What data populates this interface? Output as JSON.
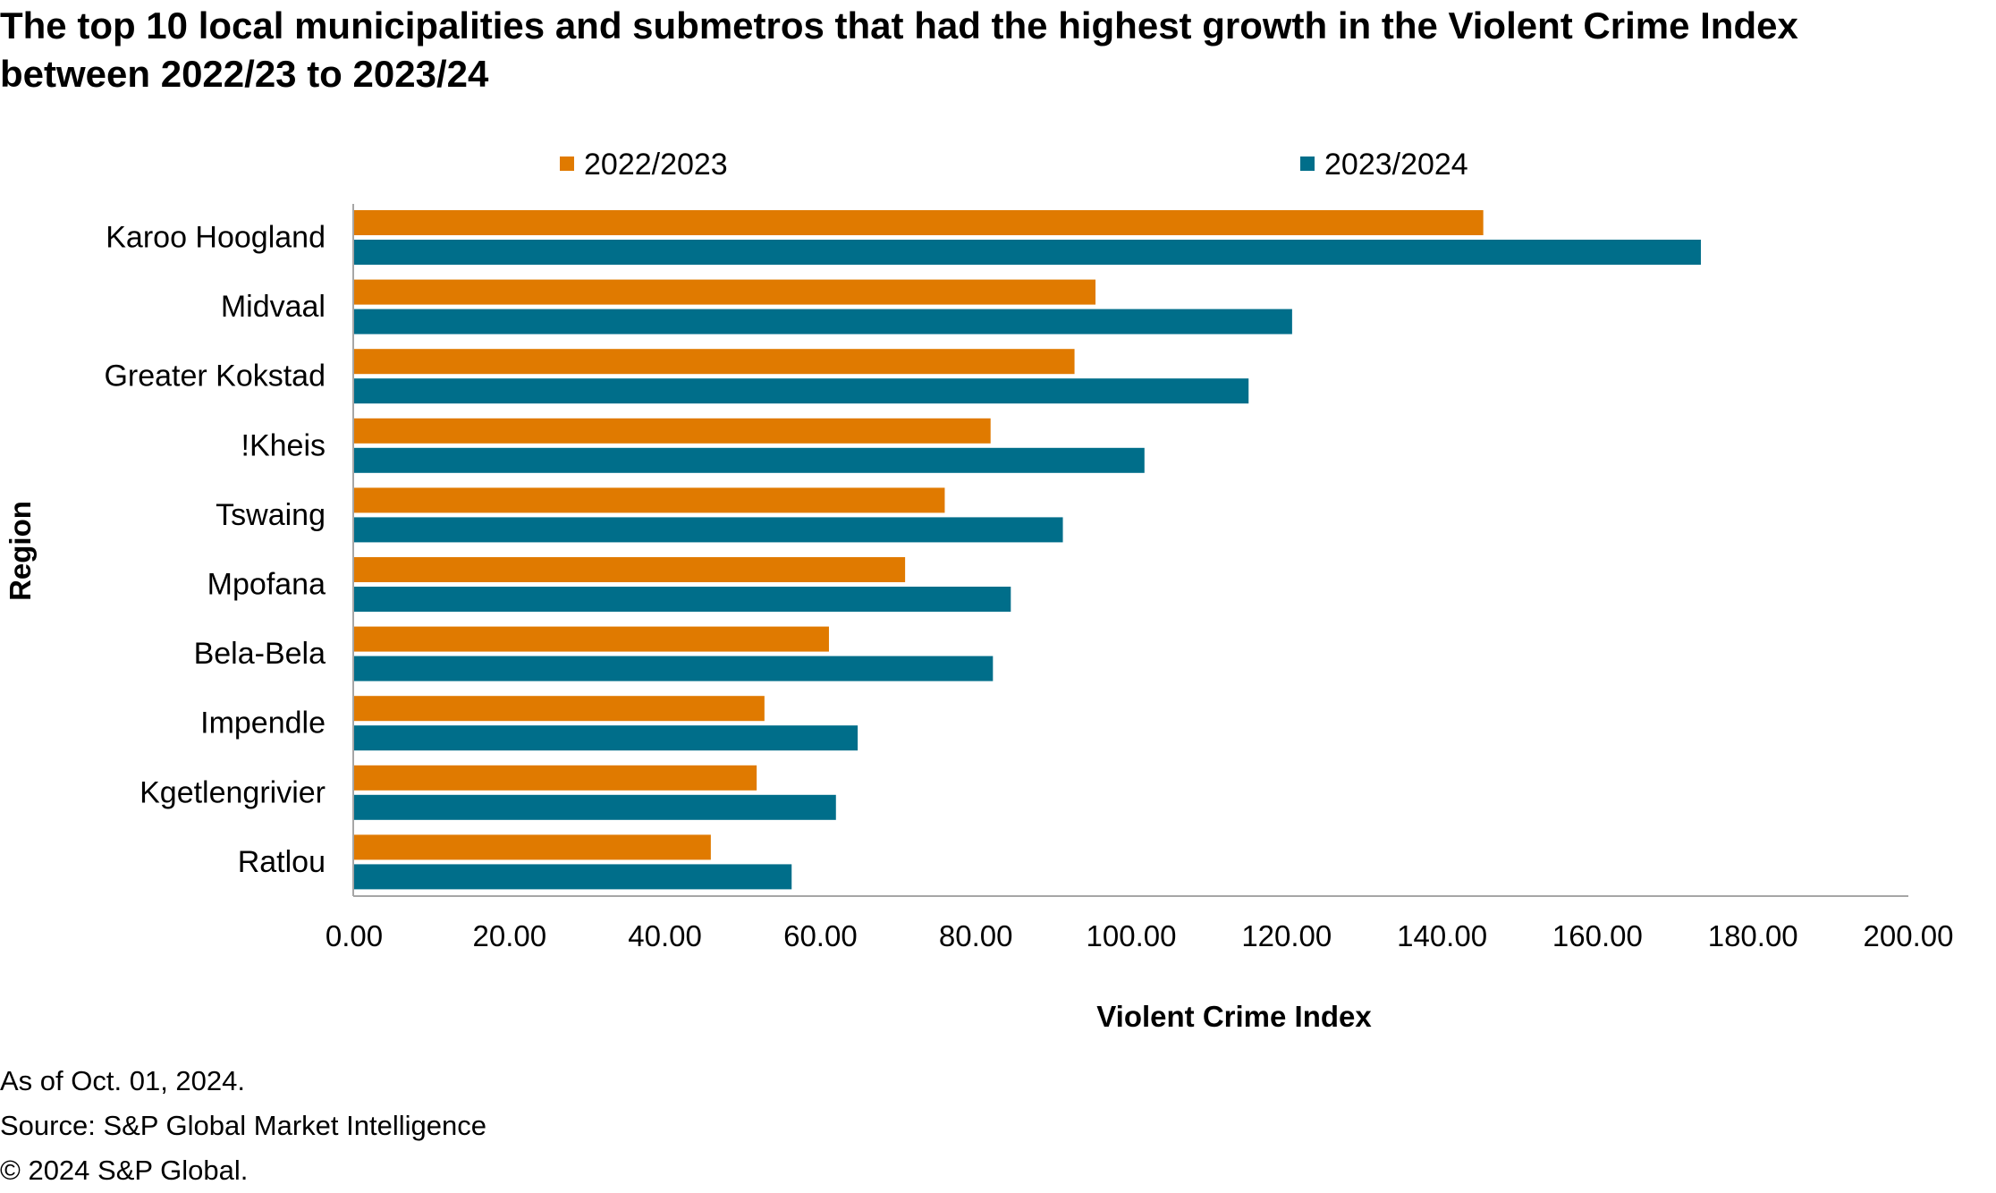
{
  "title_lines": [
    "The top 10 local municipalities and submetros that had the highest growth in the Violent Crime Index",
    "between 2022/23 to 2023/24"
  ],
  "footnotes": {
    "as_of": "As of Oct. 01, 2024.",
    "source": "Source: S&P Global Market Intelligence",
    "copyright": "© 2024 S&P Global."
  },
  "chart_data": {
    "type": "bar",
    "orientation": "horizontal",
    "title": "The top 10 local municipalities and submetros that had the highest growth in the Violent Crime Index between 2022/23 to 2023/24",
    "xlabel": "Violent Crime Index",
    "ylabel": "Region",
    "xlim": [
      0,
      200
    ],
    "x_ticks": [
      "0.00",
      "20.00",
      "40.00",
      "60.00",
      "80.00",
      "100.00",
      "120.00",
      "140.00",
      "160.00",
      "180.00",
      "200.00"
    ],
    "categories": [
      "Karoo Hoogland",
      "Midvaal",
      "Greater Kokstad",
      "!Kheis",
      "Tswaing",
      "Mpofana",
      "Bela-Bela",
      "Impendle",
      "Kgetlengrivier",
      "Ratlou"
    ],
    "series": [
      {
        "name": "2022/2023",
        "color": "#E07A00",
        "values": [
          145.3,
          95.4,
          92.7,
          81.9,
          76.0,
          70.9,
          61.1,
          52.8,
          51.8,
          45.9
        ]
      },
      {
        "name": "2023/2024",
        "color": "#006E8A",
        "values": [
          173.3,
          120.7,
          115.1,
          101.7,
          91.2,
          84.5,
          82.2,
          64.8,
          62.0,
          56.3
        ]
      }
    ],
    "legend_position": "top",
    "grid": false
  }
}
